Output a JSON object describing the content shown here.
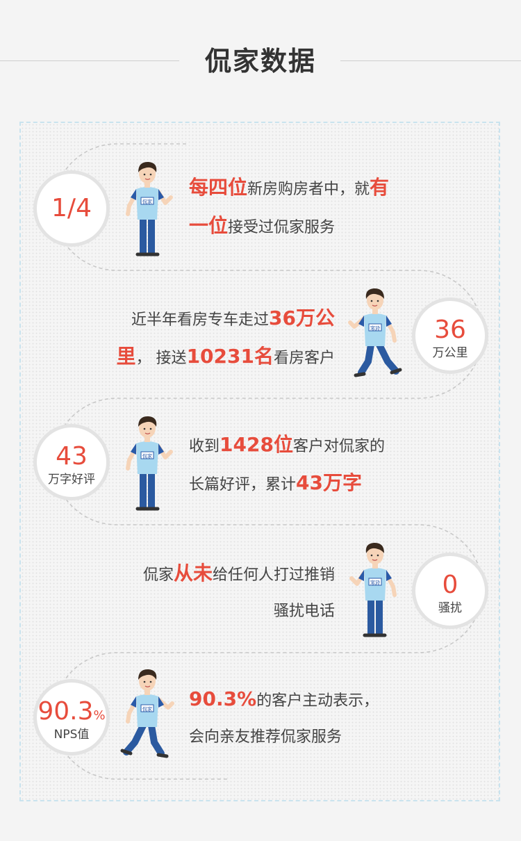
{
  "header": {
    "title": "侃家数据"
  },
  "stats": [
    {
      "badge_value": "1/4",
      "badge_unit": "",
      "line1": [
        {
          "t": "每四位",
          "hl": true
        },
        {
          "t": "新房购房者中，就",
          "hl": false
        },
        {
          "t": "有",
          "hl": true
        }
      ],
      "line2": [
        {
          "t": "一位",
          "hl": true
        },
        {
          "t": "接受过侃家服务",
          "hl": false
        }
      ]
    },
    {
      "badge_value": "36",
      "badge_unit": "万公里",
      "line1": [
        {
          "t": "近半年看房专车走过",
          "hl": false
        },
        {
          "t": "36万公",
          "hl": true
        }
      ],
      "line2": [
        {
          "t": "里",
          "hl": true
        },
        {
          "t": "，   接送",
          "hl": false
        },
        {
          "t": "10231名",
          "hl": true
        },
        {
          "t": "看房客户",
          "hl": false
        }
      ]
    },
    {
      "badge_value": "43",
      "badge_unit": "万字好评",
      "line1": [
        {
          "t": "收到",
          "hl": false
        },
        {
          "t": "1428位",
          "hl": true
        },
        {
          "t": "客户对侃家的",
          "hl": false
        }
      ],
      "line2": [
        {
          "t": "长篇好评，累计",
          "hl": false
        },
        {
          "t": "43万字",
          "hl": true
        }
      ]
    },
    {
      "badge_value": "0",
      "badge_unit": "骚扰",
      "line1": [
        {
          "t": "侃家",
          "hl": false
        },
        {
          "t": "从未",
          "hl": true
        },
        {
          "t": "给任何人打过推销",
          "hl": false
        }
      ],
      "line2": [
        {
          "t": "骚扰电话",
          "hl": false
        }
      ]
    },
    {
      "badge_value": "90.3",
      "badge_pct": "%",
      "badge_unit": "NPS值",
      "line1": [
        {
          "t": "90.3%",
          "hl": true
        },
        {
          "t": "的客户主动表示，",
          "hl": false
        }
      ],
      "line2": [
        {
          "t": "会向亲友推荐侃家服务",
          "hl": false
        }
      ]
    }
  ],
  "shirt_logo": "侃家",
  "colors": {
    "accent": "#e74c3c",
    "shirt": "#a8d8f0",
    "sleeve": "#2a5aa8",
    "pants": "#2b5aa0",
    "hair": "#3a2a1e",
    "skin": "#f6d4b8"
  }
}
